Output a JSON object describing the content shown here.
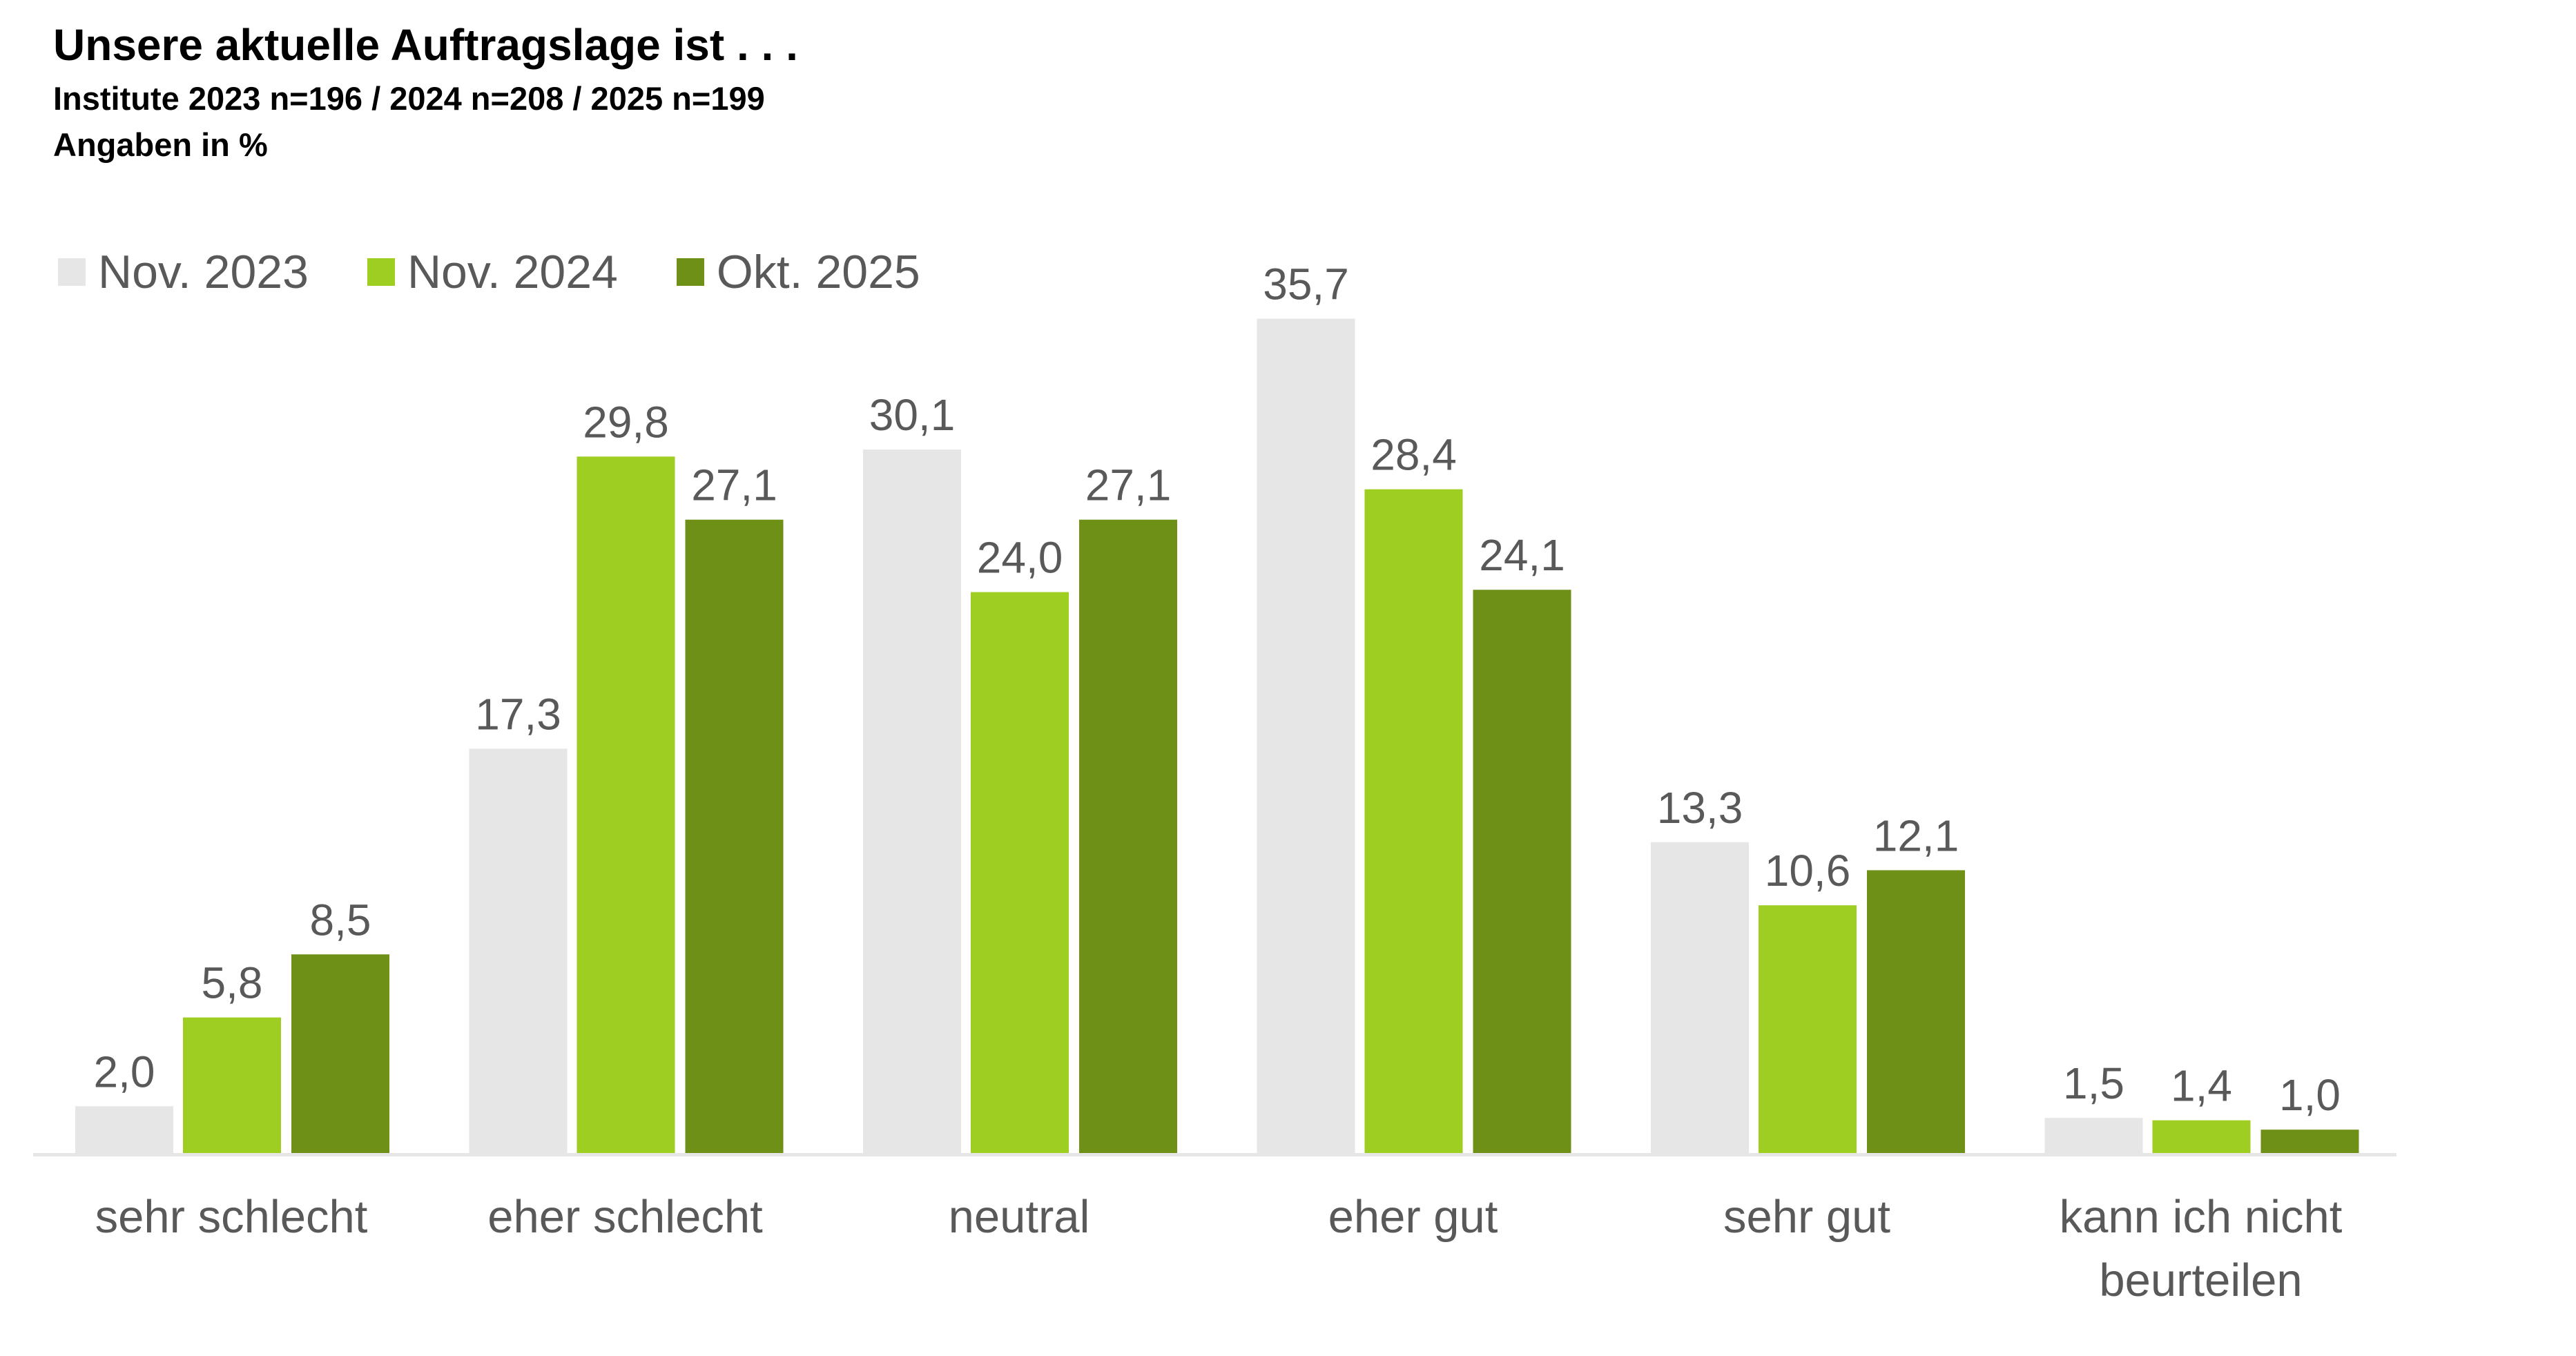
{
  "chart_data": {
    "type": "bar",
    "title": "Unsere aktuelle Auftragslage ist . . .",
    "subtitle": "Institute 2023 n=196 / 2024 n=208 / 2025 n=199",
    "unit_note": "Angaben in %",
    "xlabel": "",
    "ylabel": "",
    "ylim": [
      0,
      40
    ],
    "grid": false,
    "legend_position": "top-left",
    "categories": [
      [
        "sehr schlecht"
      ],
      [
        "eher schlecht"
      ],
      [
        "neutral"
      ],
      [
        "eher gut"
      ],
      [
        "sehr gut"
      ],
      [
        "kann ich nicht",
        "beurteilen"
      ]
    ],
    "series": [
      {
        "name": "Nov. 2023",
        "color": "#E6E6E6",
        "values": [
          2.0,
          17.3,
          30.1,
          35.7,
          13.3,
          1.5
        ],
        "labels": [
          "2,0",
          "17,3",
          "30,1",
          "35,7",
          "13,3",
          "1,5"
        ]
      },
      {
        "name": "Nov. 2024",
        "color": "#9FCE23",
        "values": [
          5.8,
          29.8,
          24.0,
          28.4,
          10.6,
          1.4
        ],
        "labels": [
          "5,8",
          "29,8",
          "24,0",
          "28,4",
          "10,6",
          "1,4"
        ]
      },
      {
        "name": "Okt. 2025",
        "color": "#6E9017",
        "values": [
          8.5,
          27.1,
          27.1,
          24.1,
          12.1,
          1.0
        ],
        "labels": [
          "8,5",
          "27,1",
          "27,1",
          "24,1",
          "12,1",
          "1,0"
        ]
      }
    ]
  }
}
